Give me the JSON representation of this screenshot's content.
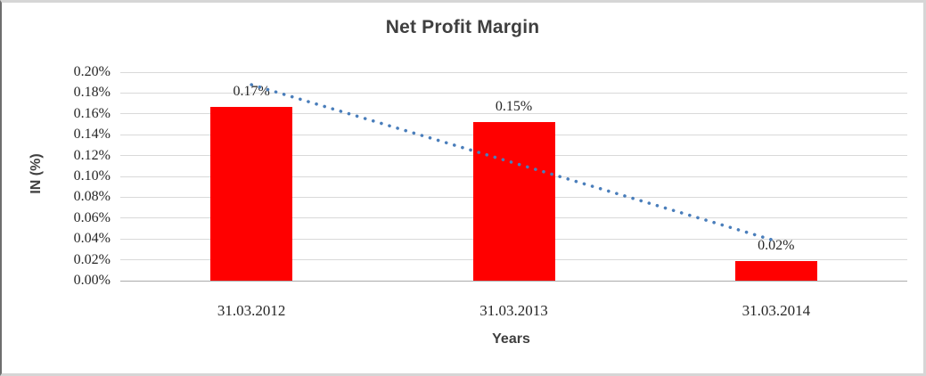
{
  "chart_data": {
    "type": "bar",
    "title": "Net Profit Margin",
    "xlabel": "Years",
    "ylabel": "IN (%)",
    "categories": [
      "31.03.2012",
      "31.03.2013",
      "31.03.2014"
    ],
    "values": [
      0.167,
      0.152,
      0.019
    ],
    "data_labels": [
      "0.17%",
      "0.15%",
      "0.02%"
    ],
    "ylim": [
      0,
      0.2
    ],
    "ytick_labels": [
      "0.20%",
      "0.18%",
      "0.16%",
      "0.14%",
      "0.12%",
      "0.10%",
      "0.08%",
      "0.06%",
      "0.04%",
      "0.02%",
      "0.00%"
    ],
    "grid": true,
    "legend": false,
    "bar_color": "#ff0000",
    "trendline": {
      "style": "dotted",
      "color": "#4a7ebb",
      "start_value": 0.188,
      "end_value": 0.038
    }
  }
}
